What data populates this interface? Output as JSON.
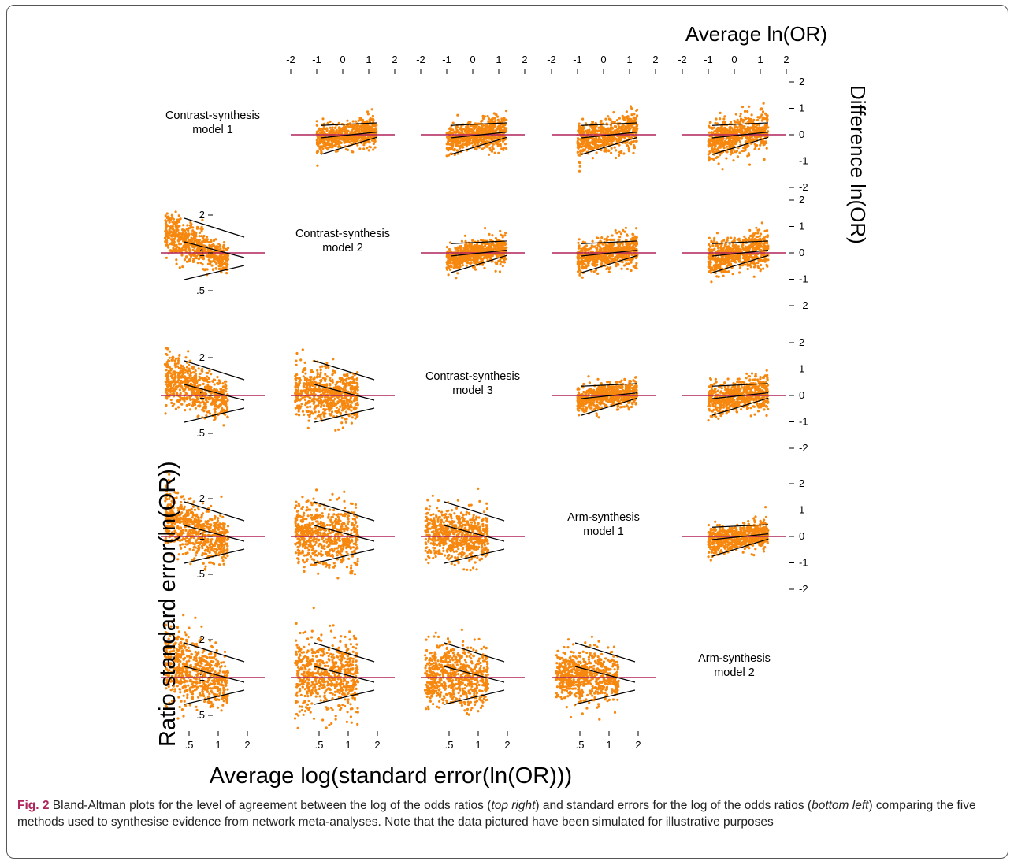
{
  "figure": {
    "top_axis_title": "Average ln(OR)",
    "right_axis_title": "Difference ln(OR)",
    "left_axis_title": "Ratio standard error(ln(OR))",
    "bottom_axis_title": "Average log(standard error(ln(OR)))",
    "models": [
      [
        "Contrast-synthesis",
        "model 1"
      ],
      [
        "Contrast-synthesis",
        "model 2"
      ],
      [
        "Contrast-synthesis",
        "model 3"
      ],
      [
        "Arm-synthesis",
        "model 1"
      ],
      [
        "Arm-synthesis",
        "model 2"
      ]
    ],
    "caption": {
      "label": "Fig. 2",
      "part1": " Bland-Altman plots for the level of agreement between the log of the odds ratios (",
      "em1": "top right",
      "part2": ") and standard errors for the log of the odds ratios (",
      "em2": "bottom left",
      "part3": ") comparing the five methods used to synthesise evidence from network meta-analyses. Note that the data pictured have been simulated for illustrative purposes"
    },
    "colors": {
      "points": "#f7880f",
      "reference_line": "#b0245c",
      "limits": "#000000"
    }
  },
  "chart_data": [
    {
      "type": "scatter",
      "panel": "upper-triangle",
      "description_of_pairs": "difference vs average of ln(OR) for each pair of models (row model vs column model)",
      "x_axis_label": "Average ln(OR)",
      "y_axis_label": "Difference ln(OR)",
      "x_ticks": [
        -2,
        -1,
        0,
        1,
        2
      ],
      "y_ticks": [
        -2,
        -1,
        0,
        1,
        2
      ],
      "xlim": [
        -2,
        2
      ],
      "ylim": [
        -2,
        2
      ],
      "reference_line": 0,
      "points_per_panel": 1000,
      "point_x_range": [
        -1,
        1.3
      ],
      "approx_limits_of_agreement": {
        "upper": 0.4,
        "lower": -0.5
      }
    },
    {
      "type": "scatter",
      "panel": "lower-triangle",
      "description_of_pairs": "ratio vs average of log standard error(ln(OR)) for each pair of models",
      "x_axis_label": "Average log(standard error(ln(OR)))",
      "y_axis_label": "Ratio standard error(ln(OR))",
      "x_ticks": [
        ".5",
        "1",
        "2"
      ],
      "y_ticks": [
        ".5",
        "1",
        "2"
      ],
      "reference_line": 1,
      "points_per_panel": 1000,
      "point_x_range": [
        0.35,
        1.5
      ],
      "point_y_range": [
        0.55,
        1.9
      ]
    }
  ]
}
